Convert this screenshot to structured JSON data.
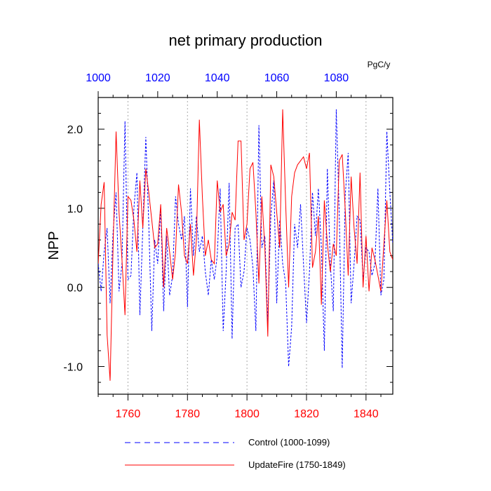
{
  "chart_data": {
    "type": "line",
    "title": "net primary production",
    "ylabel": "NPP",
    "units": "PgC/y",
    "ylim": [
      -1.35,
      2.4
    ],
    "yticks": [
      -1.0,
      0.0,
      1.0,
      2.0
    ],
    "ytick_labels": [
      "-1.0",
      "0.0",
      "1.0",
      "2.0"
    ],
    "bottom_axis": {
      "range": [
        1750,
        1849
      ],
      "ticks": [
        1760,
        1780,
        1800,
        1820,
        1840
      ],
      "color": "#ff0000"
    },
    "top_axis": {
      "range": [
        1000,
        1099
      ],
      "ticks": [
        1000,
        1020,
        1040,
        1060,
        1080
      ],
      "color": "#0000ff"
    },
    "grid": "vertical dotted at bottom ticks",
    "legend_position": "bottom",
    "series": [
      {
        "name": "Control (1000-1099)",
        "color": "#0000ff",
        "style": "dashed",
        "axis": "top",
        "x": [
          1000,
          1001,
          1002,
          1003,
          1004,
          1005,
          1006,
          1007,
          1008,
          1009,
          1010,
          1011,
          1012,
          1013,
          1014,
          1015,
          1016,
          1017,
          1018,
          1019,
          1020,
          1021,
          1022,
          1023,
          1024,
          1025,
          1026,
          1027,
          1028,
          1029,
          1030,
          1031,
          1032,
          1033,
          1034,
          1035,
          1036,
          1037,
          1038,
          1039,
          1040,
          1041,
          1042,
          1043,
          1044,
          1045,
          1046,
          1047,
          1048,
          1049,
          1050,
          1051,
          1052,
          1053,
          1054,
          1055,
          1056,
          1057,
          1058,
          1059,
          1060,
          1061,
          1062,
          1063,
          1064,
          1065,
          1066,
          1067,
          1068,
          1069,
          1070,
          1071,
          1072,
          1073,
          1074,
          1075,
          1076,
          1077,
          1078,
          1079,
          1080,
          1081,
          1082,
          1083,
          1084,
          1085,
          1086,
          1087,
          1088,
          1089,
          1090,
          1091,
          1092,
          1093,
          1094,
          1095,
          1096,
          1097,
          1098,
          1099
        ],
        "values": [
          0.3,
          -0.05,
          0.45,
          0.75,
          -0.2,
          0.7,
          1.2,
          -0.05,
          0.3,
          2.1,
          0.1,
          0.15,
          1.0,
          1.45,
          -0.35,
          0.75,
          1.9,
          0.8,
          -0.55,
          0.6,
          0.3,
          1.0,
          -0.3,
          0.65,
          -0.1,
          0.15,
          1.15,
          0.8,
          0.6,
          0.9,
          -0.25,
          1.25,
          0.4,
          0.9,
          0.45,
          0.65,
          0.2,
          -0.1,
          0.35,
          0.1,
          0.4,
          1.25,
          -0.55,
          0.2,
          1.32,
          -0.65,
          0.75,
          0.8,
          0.0,
          0.2,
          0.75,
          0.6,
          0.25,
          -0.55,
          2.05,
          0.5,
          0.65,
          -0.45,
          0.9,
          1.35,
          -0.2,
          0.85,
          0.3,
          0.05,
          -1.0,
          -0.5,
          0.8,
          0.5,
          1.05,
          0.3,
          -0.45,
          0.2,
          1.2,
          0.65,
          1.25,
          0.5,
          -0.8,
          1.5,
          0.3,
          -0.3,
          2.25,
          0.95,
          -1.02,
          1.15,
          1.7,
          -0.2,
          0.3,
          0.9,
          0.85,
          0.1,
          0.5,
          0.45,
          0.15,
          0.3,
          1.25,
          -0.1,
          0.1,
          1.97,
          1.2,
          0.55
        ]
      },
      {
        "name": "UpdateFire (1750-1849)",
        "color": "#ff0000",
        "style": "solid",
        "axis": "bottom",
        "x": [
          1750,
          1751,
          1752,
          1753,
          1754,
          1755,
          1756,
          1757,
          1758,
          1759,
          1760,
          1761,
          1762,
          1763,
          1764,
          1765,
          1766,
          1767,
          1768,
          1769,
          1770,
          1771,
          1772,
          1773,
          1774,
          1775,
          1776,
          1777,
          1778,
          1779,
          1780,
          1781,
          1782,
          1783,
          1784,
          1785,
          1786,
          1787,
          1788,
          1789,
          1790,
          1791,
          1792,
          1793,
          1794,
          1795,
          1796,
          1797,
          1798,
          1799,
          1800,
          1801,
          1802,
          1803,
          1804,
          1805,
          1806,
          1807,
          1808,
          1809,
          1810,
          1811,
          1812,
          1813,
          1814,
          1815,
          1816,
          1817,
          1818,
          1819,
          1820,
          1821,
          1822,
          1823,
          1824,
          1825,
          1826,
          1827,
          1828,
          1829,
          1830,
          1831,
          1832,
          1833,
          1834,
          1835,
          1836,
          1837,
          1838,
          1839,
          1840,
          1841,
          1842,
          1843,
          1844,
          1845,
          1846,
          1847,
          1848,
          1849
        ],
        "values": [
          0.3,
          1.05,
          1.33,
          -0.6,
          -1.18,
          0.5,
          1.97,
          0.95,
          0.35,
          -0.35,
          1.15,
          1.1,
          0.85,
          0.45,
          1.35,
          0.75,
          1.5,
          1.2,
          0.85,
          0.5,
          0.55,
          1.05,
          0.0,
          0.75,
          0.45,
          0.1,
          0.45,
          1.3,
          0.95,
          0.4,
          0.3,
          0.8,
          0.15,
          0.6,
          2.12,
          1.15,
          0.4,
          0.6,
          0.35,
          0.3,
          1.35,
          0.95,
          1.05,
          0.4,
          0.55,
          0.95,
          0.85,
          1.85,
          1.85,
          0.6,
          0.8,
          1.5,
          1.58,
          0.95,
          0.05,
          1.15,
          0.5,
          -0.62,
          1.55,
          1.4,
          0.95,
          0.5,
          2.25,
          1.05,
          0.0,
          1.15,
          1.45,
          1.55,
          1.6,
          1.65,
          1.5,
          1.7,
          0.25,
          0.45,
          0.9,
          -0.22,
          1.1,
          0.55,
          0.2,
          0.55,
          0.4,
          1.6,
          1.68,
          1.0,
          0.15,
          1.4,
          0.75,
          0.3,
          1.45,
          0.0,
          0.65,
          -0.05,
          0.5,
          0.35,
          0.15,
          -0.05,
          0.55,
          1.1,
          0.45,
          0.35
        ]
      }
    ]
  }
}
